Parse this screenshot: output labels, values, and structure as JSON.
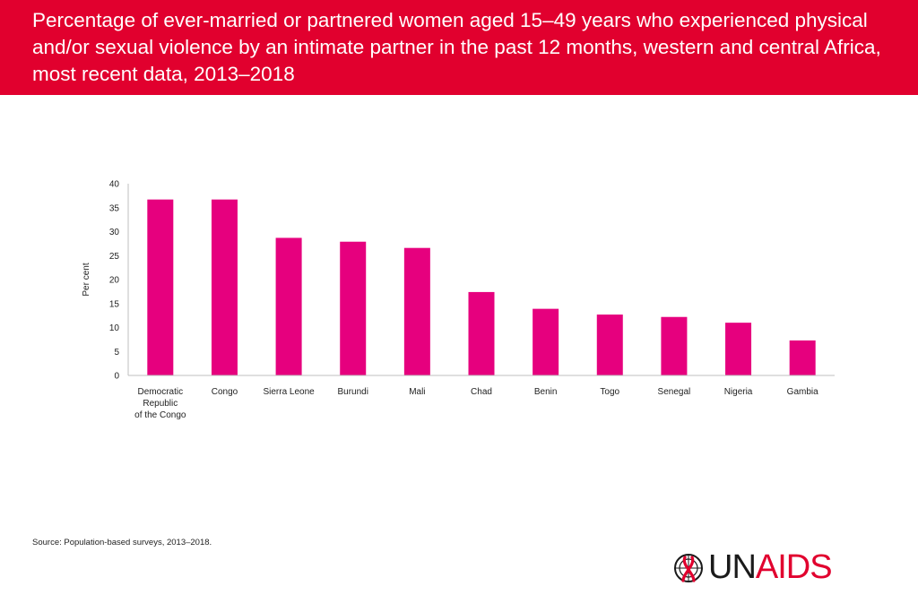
{
  "header": {
    "title": "Percentage of ever-married or partnered women aged 15–49 years who experienced physical and/or sexual violence by an intimate partner in the past 12 months, western and central Africa, most recent data, 2013–2018"
  },
  "chart_data": {
    "type": "bar",
    "title": "",
    "xlabel": "",
    "ylabel": "Per cent",
    "ylim": [
      0,
      40
    ],
    "yticks": [
      0,
      5,
      10,
      15,
      20,
      25,
      30,
      35,
      40
    ],
    "grid": false,
    "bar_color": "#e6007e",
    "categories": [
      [
        "Democratic",
        "Republic",
        "of the Congo"
      ],
      [
        "Congo"
      ],
      [
        "Sierra Leone"
      ],
      [
        "Burundi"
      ],
      [
        "Mali"
      ],
      [
        "Chad"
      ],
      [
        "Benin"
      ],
      [
        "Togo"
      ],
      [
        "Senegal"
      ],
      [
        "Nigeria"
      ],
      [
        "Gambia"
      ]
    ],
    "values": [
      36.7,
      36.7,
      28.7,
      27.9,
      26.6,
      17.4,
      13.9,
      12.7,
      12.2,
      11.0,
      7.3
    ]
  },
  "footer": {
    "source_label": "Source:",
    "source_text": " Population-based surveys, 2013–2018."
  },
  "logo": {
    "brand_un": "UN",
    "brand_aids": "AIDS",
    "emblem": "un-emblem-with-red-ribbon-icon"
  }
}
